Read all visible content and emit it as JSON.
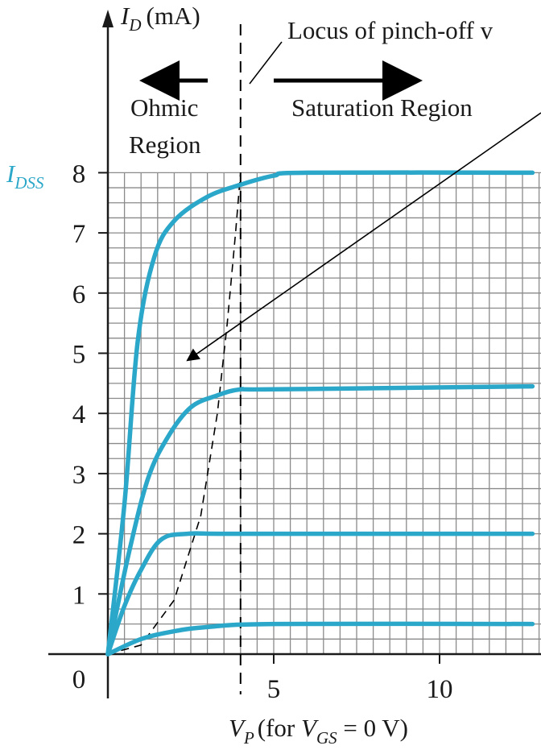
{
  "colors": {
    "curve": "#2aa7c9",
    "grid": "#8a8a8a",
    "axis": "#1a1a1a",
    "label_accent": "#2aa7c9"
  },
  "labels": {
    "y_axis_var": "I",
    "y_axis_sub": "D",
    "y_axis_unit": "(mA)",
    "locus": "Locus of pinch-off v",
    "ohmic_line1": "Ohmic",
    "ohmic_line2": "Region",
    "saturation": "Saturation Region",
    "idss_var": "I",
    "idss_sub": "DSS",
    "vp_var": "V",
    "vp_sub": "P",
    "vp_text1": "(for ",
    "vp_var2": "V",
    "vp_sub2": "GS",
    "vp_text2": " = 0 V)"
  },
  "chart_data": {
    "type": "line",
    "xlabel": "",
    "ylabel": "I_D (mA)",
    "xlim": [
      0,
      12.8
    ],
    "ylim": [
      0,
      8
    ],
    "x_ticks": [
      "5",
      "10"
    ],
    "x_tick_values": [
      5,
      10
    ],
    "y_ticks": [
      "0",
      "1",
      "2",
      "3",
      "4",
      "5",
      "6",
      "7",
      "8"
    ],
    "y_tick_values": [
      0,
      1,
      2,
      3,
      4,
      5,
      6,
      7,
      8
    ],
    "grid": true,
    "series": [
      {
        "points": [
          [
            0,
            0
          ],
          [
            0.5,
            2.5
          ],
          [
            0.9,
            5.2
          ],
          [
            1.4,
            6.6
          ],
          [
            2.0,
            7.2
          ],
          [
            3.0,
            7.6
          ],
          [
            4.0,
            7.8
          ],
          [
            5.0,
            7.95
          ],
          [
            6.0,
            8.0
          ],
          [
            12.8,
            8.0
          ]
        ]
      },
      {
        "points": [
          [
            0,
            0
          ],
          [
            0.6,
            1.6
          ],
          [
            1.2,
            2.9
          ],
          [
            1.8,
            3.6
          ],
          [
            2.5,
            4.1
          ],
          [
            3.3,
            4.3
          ],
          [
            4.0,
            4.4
          ],
          [
            5.0,
            4.4
          ],
          [
            12.8,
            4.45
          ]
        ]
      },
      {
        "points": [
          [
            0,
            0
          ],
          [
            0.5,
            0.8
          ],
          [
            1.0,
            1.4
          ],
          [
            1.6,
            1.9
          ],
          [
            2.4,
            2.0
          ],
          [
            4.0,
            2.0
          ],
          [
            12.8,
            2.0
          ]
        ]
      },
      {
        "points": [
          [
            0,
            0
          ],
          [
            1.0,
            0.25
          ],
          [
            2.0,
            0.38
          ],
          [
            3.0,
            0.45
          ],
          [
            5.0,
            0.5
          ],
          [
            12.8,
            0.5
          ]
        ]
      }
    ],
    "pinchoff_locus": [
      [
        0,
        0
      ],
      [
        1.0,
        0.15
      ],
      [
        2.0,
        0.9
      ],
      [
        2.8,
        2.3
      ],
      [
        3.3,
        4.0
      ],
      [
        3.6,
        5.5
      ],
      [
        3.85,
        7.0
      ],
      [
        4.0,
        8.0
      ]
    ],
    "vp_line_x": 4.0,
    "ohmic_arrow_target": [
      2.2,
      4.8
    ]
  }
}
